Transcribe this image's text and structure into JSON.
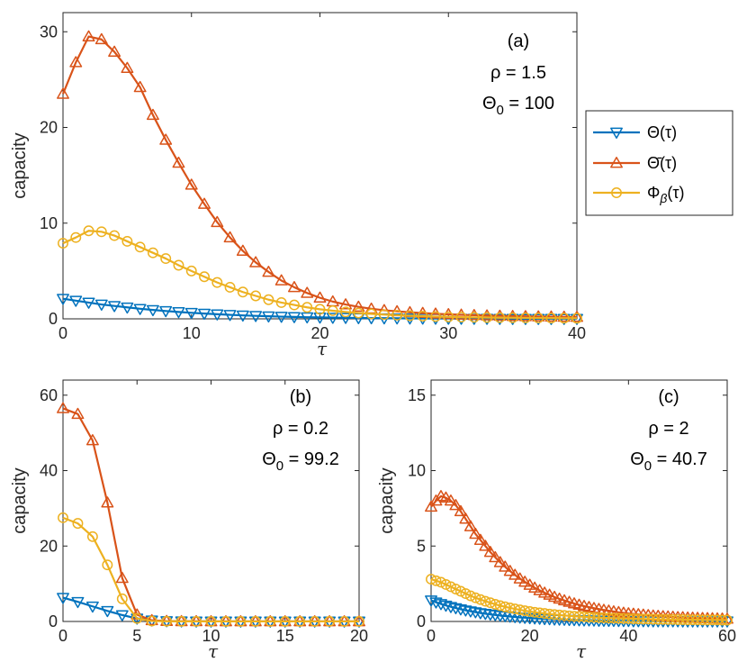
{
  "chart_data": [
    {
      "panel": "a",
      "type": "line",
      "xlabel": "τ",
      "ylabel": "capacity",
      "xlim": [
        0,
        40
      ],
      "ylim": [
        0,
        32
      ],
      "xticks": [
        0,
        10,
        20,
        30,
        40
      ],
      "yticks": [
        0,
        10,
        20,
        30
      ],
      "annotations": [
        "(a)",
        "ρ = 1.5",
        "Θ",
        "0",
        " = 100"
      ],
      "legend": {
        "placement": "outside-right",
        "entries": [
          {
            "name": "Θ(τ)",
            "color": "#0072BD",
            "marker": "triangle-down"
          },
          {
            "name": "Θ̄(τ)",
            "color": "#D95319",
            "marker": "triangle-up"
          },
          {
            "name": "Φβ(τ)",
            "color": "#EDB120",
            "marker": "circle"
          }
        ]
      },
      "series": [
        {
          "name": "Θ(τ)",
          "color": "#0072BD",
          "marker": "triangle-down",
          "x": [
            0,
            1,
            2,
            3,
            4,
            5,
            6,
            7,
            8,
            9,
            10,
            11,
            12,
            13,
            14,
            15,
            16,
            17,
            18,
            19,
            20,
            21,
            22,
            23,
            24,
            25,
            26,
            27,
            28,
            29,
            30,
            31,
            32,
            33,
            34,
            35,
            36,
            37,
            38,
            39,
            40
          ],
          "values": [
            2.1,
            1.9,
            1.7,
            1.5,
            1.35,
            1.2,
            1.05,
            0.93,
            0.82,
            0.72,
            0.63,
            0.55,
            0.48,
            0.42,
            0.36,
            0.31,
            0.27,
            0.23,
            0.2,
            0.17,
            0.15,
            0.13,
            0.11,
            0.09,
            0.08,
            0.07,
            0.06,
            0.05,
            0.04,
            0.035,
            0.03,
            0.025,
            0.02,
            0.018,
            0.015,
            0.012,
            0.01,
            0.008,
            0.006,
            0.005,
            0.004
          ]
        },
        {
          "name": "Θ̄(τ)",
          "color": "#D95319",
          "marker": "triangle-up",
          "x": [
            0,
            1,
            2,
            3,
            4,
            5,
            6,
            7,
            8,
            9,
            10,
            11,
            12,
            13,
            14,
            15,
            16,
            17,
            18,
            19,
            20,
            21,
            22,
            23,
            24,
            25,
            26,
            27,
            28,
            29,
            30,
            31,
            32,
            33,
            34,
            35,
            36,
            37,
            38,
            39,
            40
          ],
          "values": [
            23.5,
            26.8,
            29.5,
            29.2,
            27.9,
            26.2,
            24.2,
            21.3,
            18.7,
            16.3,
            14.0,
            12.0,
            10.1,
            8.5,
            7.1,
            5.9,
            4.9,
            4.0,
            3.3,
            2.7,
            2.2,
            1.8,
            1.5,
            1.25,
            1.05,
            0.9,
            0.78,
            0.68,
            0.6,
            0.53,
            0.47,
            0.42,
            0.38,
            0.34,
            0.31,
            0.28,
            0.26,
            0.24,
            0.22,
            0.2,
            0.19
          ]
        },
        {
          "name": "Φβ(τ)",
          "color": "#EDB120",
          "marker": "circle",
          "x": [
            0,
            1,
            2,
            3,
            4,
            5,
            6,
            7,
            8,
            9,
            10,
            11,
            12,
            13,
            14,
            15,
            16,
            17,
            18,
            19,
            20,
            21,
            22,
            23,
            24,
            25,
            26,
            27,
            28,
            29,
            30,
            31,
            32,
            33,
            34,
            35,
            36,
            37,
            38,
            39,
            40
          ],
          "values": [
            7.9,
            8.5,
            9.2,
            9.1,
            8.7,
            8.1,
            7.5,
            6.9,
            6.3,
            5.6,
            5.0,
            4.4,
            3.8,
            3.3,
            2.8,
            2.4,
            2.0,
            1.7,
            1.45,
            1.2,
            1.0,
            0.85,
            0.72,
            0.61,
            0.52,
            0.44,
            0.38,
            0.33,
            0.28,
            0.24,
            0.21,
            0.18,
            0.16,
            0.14,
            0.12,
            0.11,
            0.1,
            0.09,
            0.08,
            0.07,
            0.06
          ]
        }
      ]
    },
    {
      "panel": "b",
      "type": "line",
      "xlabel": "τ",
      "ylabel": "capacity",
      "xlim": [
        0,
        20
      ],
      "ylim": [
        0,
        64
      ],
      "xticks": [
        0,
        5,
        10,
        15,
        20
      ],
      "yticks": [
        0,
        20,
        40,
        60
      ],
      "annotations": [
        "(b)",
        "ρ = 0.2",
        "Θ",
        "0",
        " = 99.2"
      ],
      "series": [
        {
          "name": "Θ(τ)",
          "color": "#0072BD",
          "marker": "triangle-down",
          "x": [
            0,
            1,
            2,
            3,
            4,
            5,
            6,
            7,
            8,
            9,
            10,
            11,
            12,
            13,
            14,
            15,
            16,
            17,
            18,
            19,
            20
          ],
          "values": [
            6.3,
            5.2,
            4.0,
            2.8,
            1.7,
            0.8,
            0.3,
            0.1,
            0.05,
            0.03,
            0.02,
            0.01,
            0.01,
            0.01,
            0.01,
            0.01,
            0.01,
            0.01,
            0.01,
            0.01,
            0.01
          ]
        },
        {
          "name": "Θ̄(τ)",
          "color": "#D95319",
          "marker": "triangle-up",
          "x": [
            0,
            1,
            2,
            3,
            4,
            5,
            6,
            7,
            8,
            9,
            10,
            11,
            12,
            13,
            14,
            15,
            16,
            17,
            18,
            19,
            20
          ],
          "values": [
            56.5,
            55.0,
            48.0,
            31.5,
            11.5,
            1.8,
            0.3,
            0.1,
            0.05,
            0.03,
            0.02,
            0.01,
            0.01,
            0.01,
            0.01,
            0.01,
            0.01,
            0.01,
            0.01,
            0.01,
            0.01
          ]
        },
        {
          "name": "Φβ(τ)",
          "color": "#EDB120",
          "marker": "circle",
          "x": [
            0,
            1,
            2,
            3,
            4,
            5,
            6,
            7,
            8,
            9,
            10,
            11,
            12,
            13,
            14,
            15,
            16,
            17,
            18,
            19,
            20
          ],
          "values": [
            27.5,
            26.0,
            22.5,
            15.0,
            6.0,
            0.8,
            0.1,
            0.05,
            0.03,
            0.02,
            0.01,
            0.01,
            0.01,
            0.01,
            0.01,
            0.01,
            0.01,
            0.01,
            0.01,
            0.01,
            0.01
          ]
        }
      ]
    },
    {
      "panel": "c",
      "type": "line",
      "xlabel": "τ",
      "ylabel": "capacity",
      "xlim": [
        0,
        60
      ],
      "ylim": [
        0,
        16
      ],
      "xticks": [
        0,
        20,
        40,
        60
      ],
      "yticks": [
        0,
        5,
        10,
        15
      ],
      "annotations": [
        "(c)",
        "ρ = 2",
        "Θ",
        "0",
        " = 40.7"
      ],
      "series": [
        {
          "name": "Θ(τ)",
          "color": "#0072BD",
          "marker": "triangle-down",
          "x": [
            0,
            1,
            2,
            3,
            4,
            5,
            6,
            7,
            8,
            9,
            10,
            11,
            12,
            13,
            14,
            15,
            16,
            17,
            18,
            19,
            20,
            21,
            22,
            23,
            24,
            25,
            26,
            27,
            28,
            29,
            30,
            31,
            32,
            33,
            34,
            35,
            36,
            37,
            38,
            39,
            40,
            41,
            42,
            43,
            44,
            45,
            46,
            47,
            48,
            49,
            50,
            51,
            52,
            53,
            54,
            55,
            56,
            57,
            58,
            59,
            60
          ],
          "values": [
            1.4,
            1.27,
            1.16,
            1.06,
            0.97,
            0.89,
            0.81,
            0.74,
            0.68,
            0.62,
            0.56,
            0.51,
            0.47,
            0.43,
            0.39,
            0.36,
            0.33,
            0.3,
            0.27,
            0.25,
            0.23,
            0.21,
            0.19,
            0.17,
            0.16,
            0.14,
            0.13,
            0.12,
            0.11,
            0.1,
            0.09,
            0.08,
            0.08,
            0.07,
            0.06,
            0.06,
            0.05,
            0.05,
            0.04,
            0.04,
            0.04,
            0.03,
            0.03,
            0.03,
            0.03,
            0.02,
            0.02,
            0.02,
            0.02,
            0.02,
            0.02,
            0.01,
            0.01,
            0.01,
            0.01,
            0.01,
            0.01,
            0.01,
            0.01,
            0.01,
            0.01
          ]
        },
        {
          "name": "Θ̄(τ)",
          "color": "#D95319",
          "marker": "triangle-up",
          "x": [
            0,
            1,
            2,
            3,
            4,
            5,
            6,
            7,
            8,
            9,
            10,
            11,
            12,
            13,
            14,
            15,
            16,
            17,
            18,
            19,
            20,
            21,
            22,
            23,
            24,
            25,
            26,
            27,
            28,
            29,
            30,
            31,
            32,
            33,
            34,
            35,
            36,
            37,
            38,
            39,
            40,
            41,
            42,
            43,
            44,
            45,
            46,
            47,
            48,
            49,
            50,
            51,
            52,
            53,
            54,
            55,
            56,
            57,
            58,
            59,
            60
          ],
          "values": [
            7.6,
            8.0,
            8.3,
            8.2,
            8.0,
            7.7,
            7.3,
            6.8,
            6.3,
            5.8,
            5.4,
            5.0,
            4.6,
            4.25,
            3.92,
            3.62,
            3.34,
            3.08,
            2.84,
            2.62,
            2.42,
            2.23,
            2.06,
            1.9,
            1.76,
            1.62,
            1.5,
            1.39,
            1.29,
            1.19,
            1.1,
            1.02,
            0.95,
            0.88,
            0.82,
            0.76,
            0.71,
            0.66,
            0.61,
            0.57,
            0.53,
            0.5,
            0.47,
            0.44,
            0.41,
            0.38,
            0.36,
            0.34,
            0.32,
            0.3,
            0.28,
            0.27,
            0.25,
            0.24,
            0.23,
            0.22,
            0.21,
            0.2,
            0.19,
            0.18,
            0.17
          ]
        },
        {
          "name": "Φβ(τ)",
          "color": "#EDB120",
          "marker": "circle",
          "x": [
            0,
            1,
            2,
            3,
            4,
            5,
            6,
            7,
            8,
            9,
            10,
            11,
            12,
            13,
            14,
            15,
            16,
            17,
            18,
            19,
            20,
            21,
            22,
            23,
            24,
            25,
            26,
            27,
            28,
            29,
            30,
            31,
            32,
            33,
            34,
            35,
            36,
            37,
            38,
            39,
            40,
            41,
            42,
            43,
            44,
            45,
            46,
            47,
            48,
            49,
            50,
            51,
            52,
            53,
            54,
            55,
            56,
            57,
            58,
            59,
            60
          ],
          "values": [
            2.8,
            2.7,
            2.6,
            2.45,
            2.3,
            2.15,
            2.0,
            1.85,
            1.7,
            1.57,
            1.45,
            1.34,
            1.24,
            1.14,
            1.05,
            0.97,
            0.9,
            0.83,
            0.77,
            0.71,
            0.66,
            0.61,
            0.57,
            0.53,
            0.49,
            0.46,
            0.43,
            0.4,
            0.37,
            0.35,
            0.33,
            0.31,
            0.29,
            0.27,
            0.26,
            0.24,
            0.23,
            0.22,
            0.21,
            0.2,
            0.19,
            0.18,
            0.17,
            0.16,
            0.16,
            0.15,
            0.14,
            0.14,
            0.13,
            0.13,
            0.12,
            0.12,
            0.11,
            0.11,
            0.11,
            0.1,
            0.1,
            0.1,
            0.1,
            0.09,
            0.09
          ]
        }
      ]
    }
  ]
}
